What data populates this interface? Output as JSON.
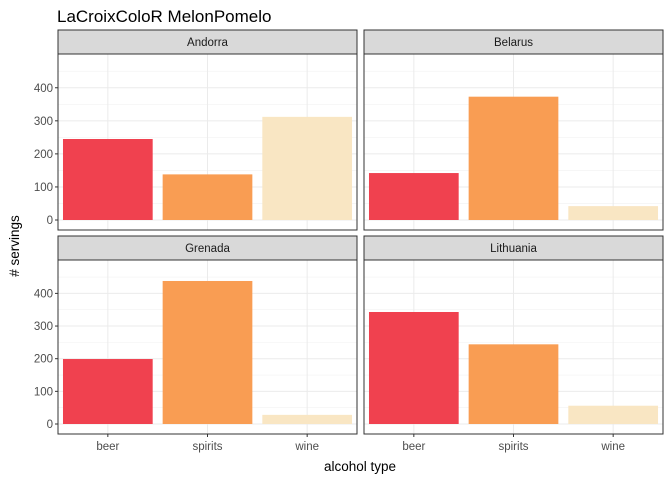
{
  "chart_data": {
    "type": "bar",
    "title": "LaCroixColoR MelonPomelo",
    "xlabel": "alcohol type",
    "ylabel": "# servings",
    "categories": [
      "beer",
      "spirits",
      "wine"
    ],
    "ylim": [
      0,
      490
    ],
    "yticks": [
      0,
      100,
      200,
      300,
      400
    ],
    "grid": true,
    "colors": [
      "#F0414F",
      "#F99D53",
      "#F9E6C3"
    ],
    "facets": [
      {
        "name": "Andorra",
        "values": [
          245,
          138,
          312
        ]
      },
      {
        "name": "Belarus",
        "values": [
          142,
          373,
          42
        ]
      },
      {
        "name": "Grenada",
        "values": [
          199,
          438,
          28
        ]
      },
      {
        "name": "Lithuania",
        "values": [
          343,
          244,
          56
        ]
      }
    ]
  }
}
